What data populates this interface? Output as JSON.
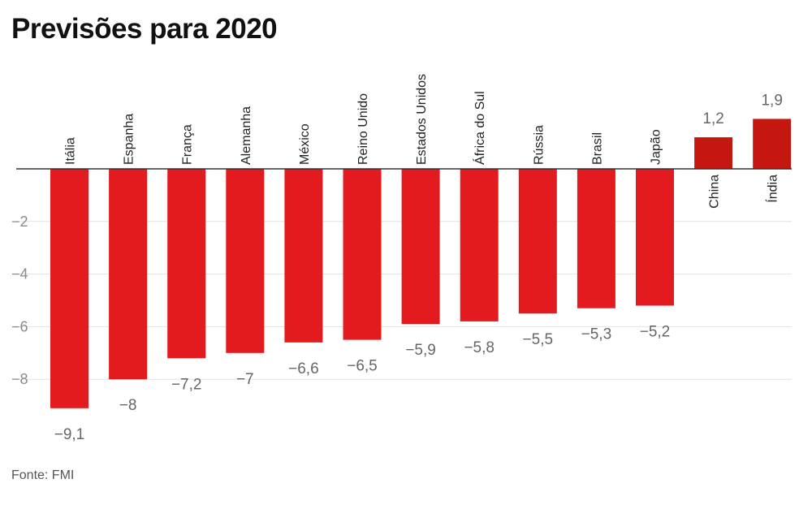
{
  "title": "Previsões para 2020",
  "source": "Fonte: FMI",
  "colors": {
    "negative": "#e31b1f",
    "positive": "#c4170f"
  },
  "chart_data": {
    "type": "bar",
    "title": "Previsões para 2020",
    "categories": [
      "Itália",
      "Espanha",
      "França",
      "Alemanha",
      "México",
      "Reino Unido",
      "Estados Unidos",
      "África do Sul",
      "Rússia",
      "Brasil",
      "Japão",
      "China",
      "Índia"
    ],
    "values": [
      -9.1,
      -8,
      -7.2,
      -7,
      -6.6,
      -6.5,
      -5.9,
      -5.8,
      -5.5,
      -5.3,
      -5.2,
      1.2,
      1.9
    ],
    "value_labels": [
      "−9,1",
      "−8",
      "−7,2",
      "−7",
      "−6,6",
      "−6,5",
      "−5,9",
      "−5,8",
      "−5,5",
      "−5,3",
      "−5,2",
      "1,2",
      "1,9"
    ],
    "yticks": [
      -2,
      -4,
      -6,
      -8
    ],
    "ytick_labels": [
      "−2",
      "−4",
      "−6",
      "−8"
    ],
    "ylim": [
      -10,
      2
    ],
    "grid": true,
    "legend": "none"
  }
}
